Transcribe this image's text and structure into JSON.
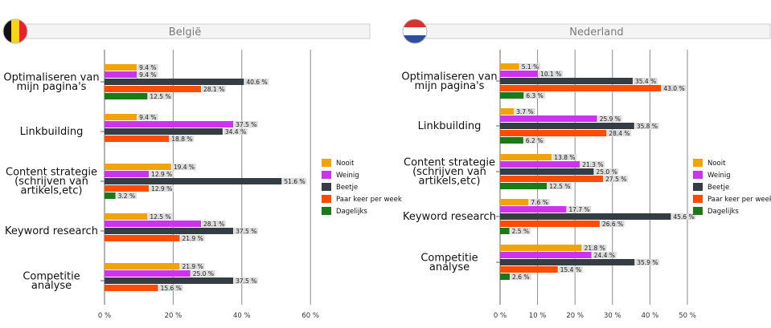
{
  "colors": {
    "Nooit": "#f0a30a",
    "Weinig": "#cc33ee",
    "Beetje": "#343c44",
    "Paar keer per week": "#ff4c00",
    "Dagelijks": "#1a7a1a",
    "title_bar": "#f4f4f4",
    "title_border": "#cfcfcf",
    "label_bg": "#dcdcdc"
  },
  "legend": [
    "Nooit",
    "Weinig",
    "Beetje",
    "Paar keer per week",
    "Dagelijks"
  ],
  "chart_data": [
    {
      "type": "bar",
      "orientation": "horizontal",
      "title": "België",
      "flag": "belgium-flag",
      "series_names": [
        "Nooit",
        "Weinig",
        "Beetje",
        "Paar keer per week",
        "Dagelijks"
      ],
      "categories": [
        {
          "lines": [
            "Optimaliseren van",
            "mijn pagina's"
          ],
          "values": [
            9.4,
            9.4,
            40.6,
            28.1,
            12.5
          ],
          "labels": [
            "9.4 %",
            "9.4 %",
            "40.6 %",
            "28.1 %",
            "12.5 %"
          ]
        },
        {
          "lines": [
            "Linkbuilding"
          ],
          "values": [
            9.4,
            37.5,
            34.4,
            18.8,
            null
          ],
          "labels": [
            "9.4 %",
            "37.5 %",
            "34.4 %",
            "18.8 %",
            ""
          ]
        },
        {
          "lines": [
            "Content strategie",
            "(schrijven van",
            "artikels,etc)"
          ],
          "values": [
            19.4,
            12.9,
            51.6,
            12.9,
            3.2
          ],
          "labels": [
            "19.4 %",
            "12.9 %",
            "51.6 %",
            "12.9 %",
            "3.2 %"
          ]
        },
        {
          "lines": [
            "Keyword research"
          ],
          "values": [
            12.5,
            28.1,
            37.5,
            21.9,
            null
          ],
          "labels": [
            "12.5 %",
            "28.1 %",
            "37.5 %",
            "21.9 %",
            ""
          ]
        },
        {
          "lines": [
            "Competitie",
            "analyse"
          ],
          "values": [
            21.9,
            25.0,
            37.5,
            15.6,
            null
          ],
          "labels": [
            "21.9 %",
            "25.0 %",
            "37.5 %",
            "15.6 %",
            ""
          ]
        }
      ],
      "xlim": [
        0,
        60
      ],
      "xticks": [
        "0 %",
        "20 %",
        "40 %",
        "60 %"
      ],
      "grid": true,
      "legend_position": "right"
    },
    {
      "type": "bar",
      "orientation": "horizontal",
      "title": "Nederland",
      "flag": "netherlands-flag",
      "series_names": [
        "Nooit",
        "Weinig",
        "Beetje",
        "Paar keer per week",
        "Dagelijks"
      ],
      "categories": [
        {
          "lines": [
            "Optimaliseren van",
            "mijn pagina's"
          ],
          "values": [
            5.1,
            10.1,
            35.4,
            43.0,
            6.3
          ],
          "labels": [
            "5.1 %",
            "10.1 %",
            "35.4 %",
            "43.0 %",
            "6.3 %"
          ]
        },
        {
          "lines": [
            "Linkbuilding"
          ],
          "values": [
            3.7,
            25.9,
            35.8,
            28.4,
            6.2
          ],
          "labels": [
            "3.7 %",
            "25.9 %",
            "35.8 %",
            "28.4 %",
            "6.2 %"
          ]
        },
        {
          "lines": [
            "Content strategie",
            "(schrijven van",
            "artikels,etc)"
          ],
          "values": [
            13.8,
            21.3,
            25.0,
            27.5,
            12.5
          ],
          "labels": [
            "13.8 %",
            "21.3 %",
            "25.0 %",
            "27.5 %",
            "12.5 %"
          ]
        },
        {
          "lines": [
            "Keyword research"
          ],
          "values": [
            7.6,
            17.7,
            45.6,
            26.6,
            2.5
          ],
          "labels": [
            "7.6 %",
            "17.7 %",
            "45.6 %",
            "26.6 %",
            "2.5 %"
          ]
        },
        {
          "lines": [
            "Competitie",
            "analyse"
          ],
          "values": [
            21.8,
            24.4,
            35.9,
            15.4,
            2.6
          ],
          "labels": [
            "21.8 %",
            "24.4 %",
            "35.9 %",
            "15.4 %",
            "2.6 %"
          ]
        }
      ],
      "xlim": [
        0,
        50
      ],
      "xticks": [
        "0 %",
        "10 %",
        "20 %",
        "30 %",
        "40 %",
        "50 %"
      ],
      "grid": true,
      "legend_position": "right"
    }
  ]
}
